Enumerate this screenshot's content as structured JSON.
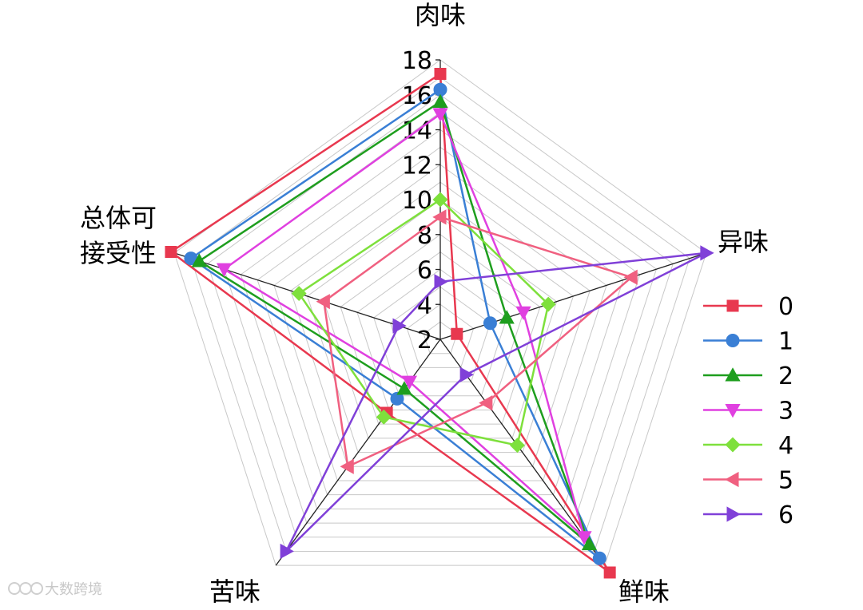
{
  "chart_data": {
    "type": "radar",
    "axes": [
      "肉味",
      "异味",
      "鲜味",
      "苦味",
      "总体可接受性"
    ],
    "axis_title_lines": [
      [
        "肉味"
      ],
      [
        "异味"
      ],
      [
        "鲜味"
      ],
      [
        "苦味"
      ],
      [
        "总体可",
        "接受性"
      ]
    ],
    "r_ticks": [
      "2",
      "4",
      "6",
      "8",
      "10",
      "12",
      "14",
      "16",
      "18"
    ],
    "rlim": [
      2,
      18
    ],
    "grid": true,
    "legend_position": "right",
    "series": [
      {
        "name": "0",
        "color": "#e8384f",
        "marker": "square",
        "values": [
          17.2,
          3.0,
          18.5,
          7.2,
          18.2
        ]
      },
      {
        "name": "1",
        "color": "#3a7fd5",
        "marker": "circle",
        "values": [
          16.3,
          5.0,
          17.5,
          6.2,
          17.0
        ]
      },
      {
        "name": "2",
        "color": "#1e9e1e",
        "marker": "triangle-up",
        "values": [
          15.6,
          6.0,
          16.5,
          5.5,
          16.5
        ]
      },
      {
        "name": "3",
        "color": "#e040e0",
        "marker": "triangle-down",
        "values": [
          14.9,
          7.0,
          16.0,
          5.0,
          15.0
        ]
      },
      {
        "name": "4",
        "color": "#7ee03c",
        "marker": "diamond",
        "values": [
          10.0,
          8.5,
          9.5,
          7.5,
          10.5
        ]
      },
      {
        "name": "5",
        "color": "#f06080",
        "marker": "triangle-left",
        "values": [
          9.0,
          13.5,
          6.5,
          11.0,
          9.0
        ]
      },
      {
        "name": "6",
        "color": "#8040d8",
        "marker": "triangle-right",
        "values": [
          5.3,
          18.0,
          4.5,
          17.0,
          4.5
        ]
      }
    ]
  },
  "watermark": {
    "text": "大数跨境",
    "kind": "logo"
  }
}
